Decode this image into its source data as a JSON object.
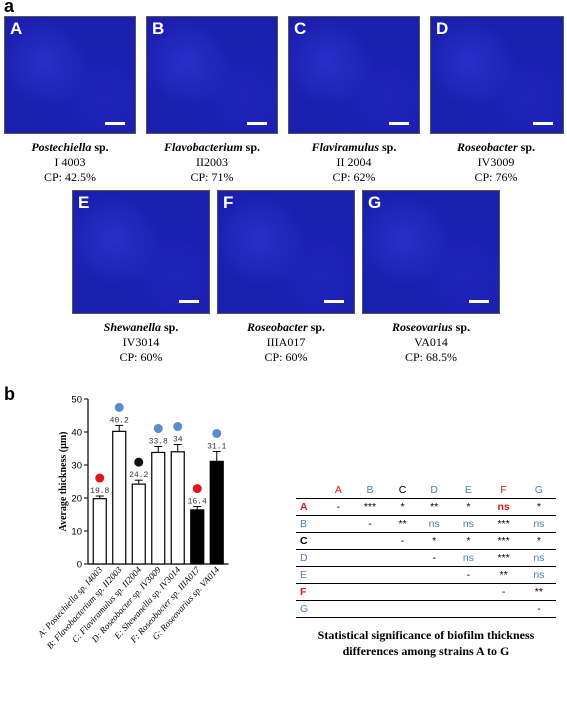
{
  "figure": {
    "label_a": "a",
    "label_b": "b",
    "micrographs": [
      {
        "tag": "A",
        "genus": "Postechiella",
        "sp": "sp.",
        "strain": "I 4003",
        "cp": "CP: 42.5%"
      },
      {
        "tag": "B",
        "genus": "Flavobacterium",
        "sp": "sp.",
        "strain": "II2003",
        "cp": "CP: 71%"
      },
      {
        "tag": "C",
        "genus": "Flaviramulus",
        "sp": "sp.",
        "strain": "II 2004",
        "cp": "CP: 62%"
      },
      {
        "tag": "D",
        "genus": "Roseobacter",
        "sp": "sp.",
        "strain": "IV3009",
        "cp": "CP: 76%"
      },
      {
        "tag": "E",
        "genus": "Shewanella",
        "sp": "sp.",
        "strain": "IV3014",
        "cp": "CP: 60%"
      },
      {
        "tag": "F",
        "genus": "Roseobacter",
        "sp": "sp.",
        "strain": "IIIA017",
        "cp": "CP: 60%"
      },
      {
        "tag": "G",
        "genus": "Roseovarius",
        "sp": "sp.",
        "strain": "VA014",
        "cp": "CP: 68.5%"
      }
    ],
    "table": {
      "headers": [
        "",
        "A",
        "B",
        "C",
        "D",
        "E",
        "F",
        "G"
      ],
      "header_colors": [
        "",
        "red",
        "blue",
        "black",
        "blue",
        "blue",
        "red",
        "blue"
      ],
      "rows": [
        {
          "label": "A",
          "color": "red",
          "cells": [
            "-",
            "***",
            "*",
            "**",
            "*",
            "ns",
            "*"
          ]
        },
        {
          "label": "B",
          "color": "blue",
          "cells": [
            "",
            "-",
            "**",
            "ns",
            "ns",
            "***",
            "ns"
          ]
        },
        {
          "label": "C",
          "color": "black",
          "cells": [
            "",
            "",
            "-",
            "*",
            "*",
            "***",
            "*"
          ]
        },
        {
          "label": "D",
          "color": "blue",
          "cells": [
            "",
            "",
            "",
            "-",
            "ns",
            "***",
            "ns"
          ]
        },
        {
          "label": "E",
          "color": "blue",
          "cells": [
            "",
            "",
            "",
            "",
            "-",
            "**",
            "ns"
          ]
        },
        {
          "label": "F",
          "color": "red",
          "cells": [
            "",
            "",
            "",
            "",
            "",
            "-",
            "**"
          ]
        },
        {
          "label": "G",
          "color": "blue",
          "cells": [
            "",
            "",
            "",
            "",
            "",
            "",
            "-"
          ]
        }
      ],
      "caption_line1": "Statistical significance of biofilm thickness",
      "caption_line2": "differences among strains A to G"
    }
  },
  "chart_data": {
    "type": "bar",
    "ylabel": "Average thickness (µm)",
    "ylim": [
      0,
      50
    ],
    "yticks": [
      0,
      10,
      20,
      30,
      40,
      50
    ],
    "categories": [
      "A: Postechiella sp. I4003",
      "B: Flavobacterium sp. II2003",
      "C: Flaviramulus sp. II2004",
      "D: Roseobacter sp. IV3009",
      "E: Shewanella sp. IV3014",
      "F: Roseobacter sp. IIIA017",
      "G: Roseovarius sp. VA014"
    ],
    "values": [
      19.8,
      40.2,
      24.2,
      33.8,
      34,
      16.4,
      31.1
    ],
    "value_labels": [
      "19.8",
      "40.2",
      "24.2",
      "33.8",
      "34",
      "16.4",
      "31.1"
    ],
    "errors": [
      0.8,
      1.8,
      1.2,
      1.8,
      2.2,
      1.0,
      3.0
    ],
    "bar_fill": [
      "white",
      "white",
      "white",
      "white",
      "white",
      "black",
      "black"
    ],
    "dot_colors": [
      "#e0141b",
      "#5b8bd0",
      "#111111",
      "#5b8bd0",
      "#5b8bd0",
      "#e0141b",
      "#5b8bd0"
    ],
    "grid": false
  }
}
